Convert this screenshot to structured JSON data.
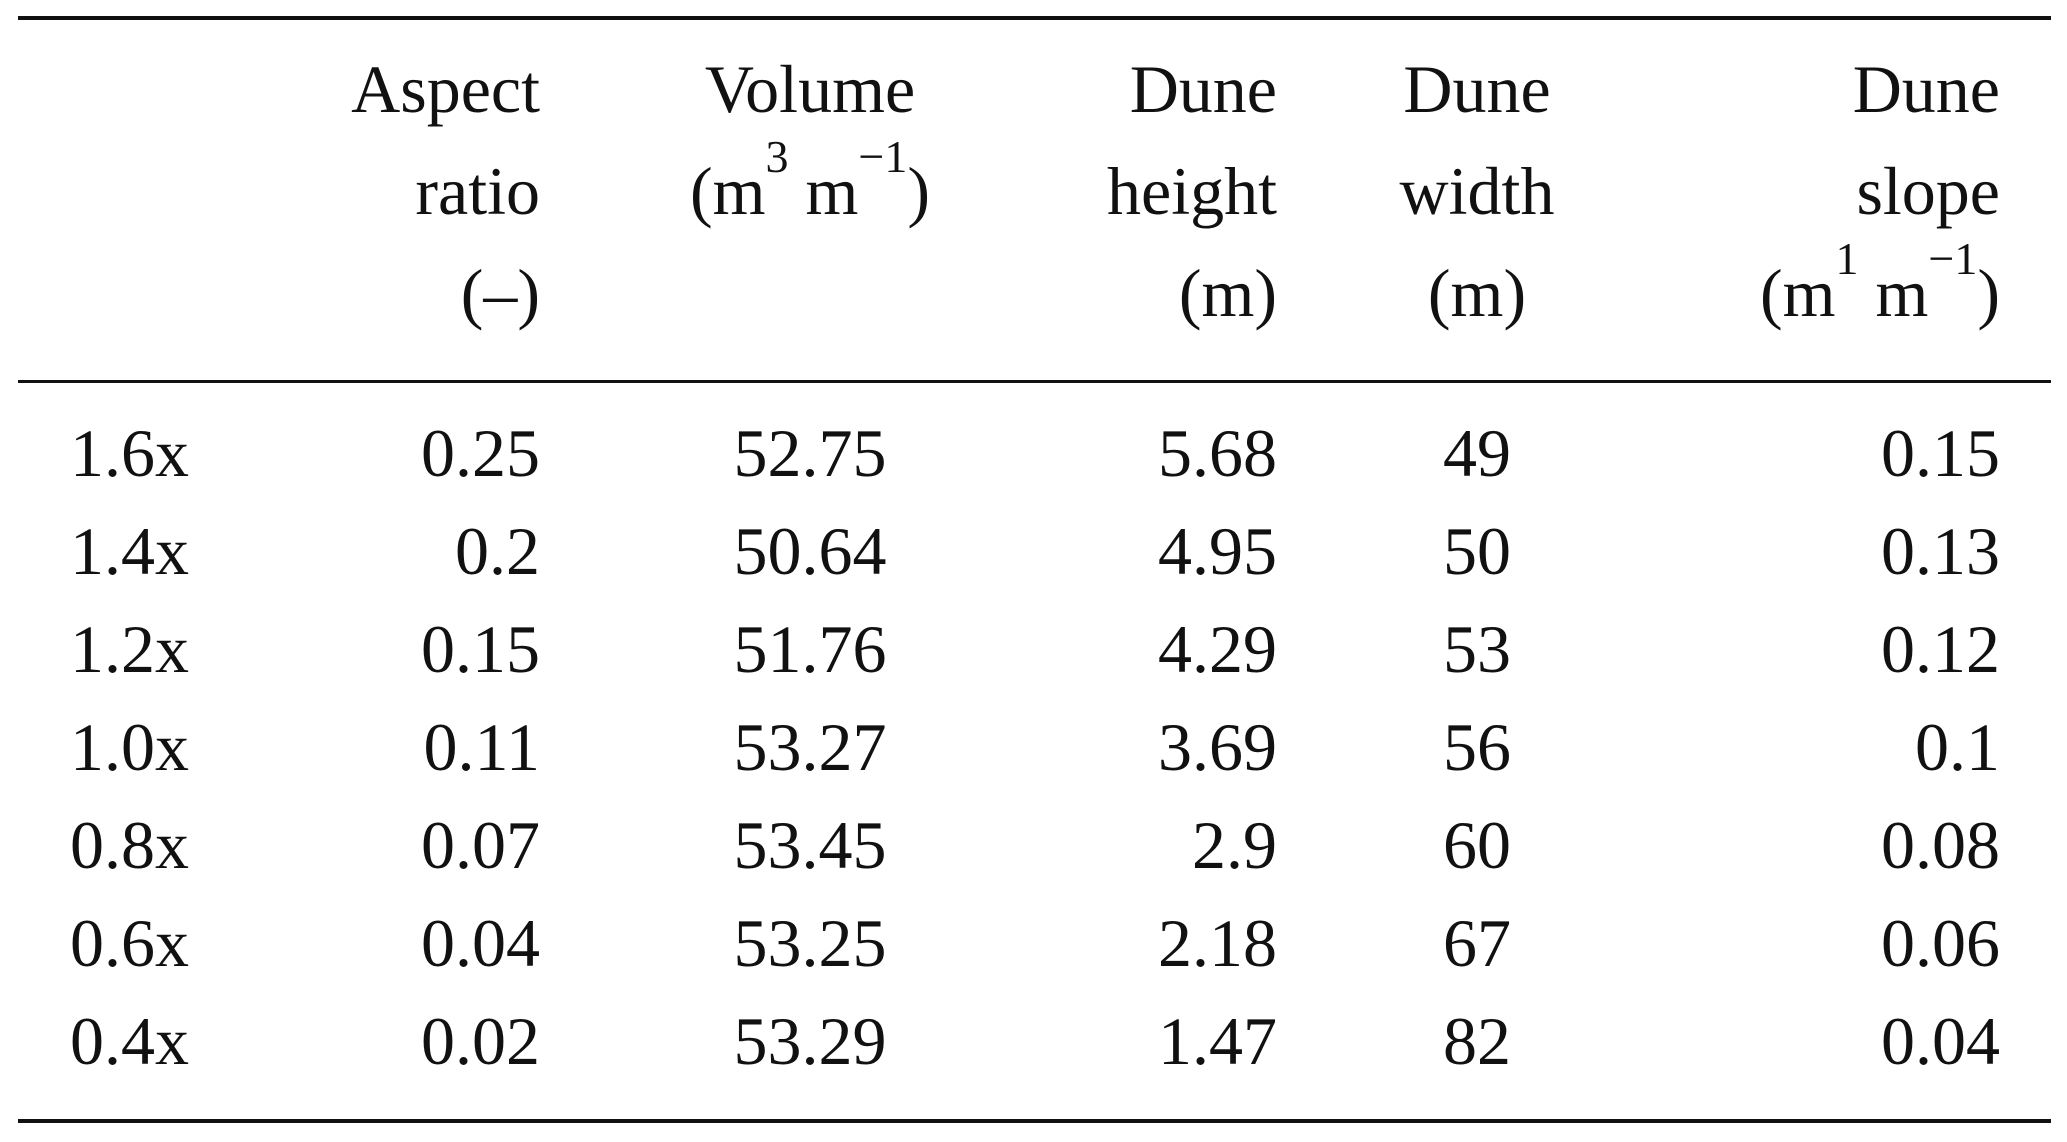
{
  "table": {
    "headers": {
      "aspect": {
        "line1": "Aspect",
        "line2": "ratio",
        "line3": "(–)"
      },
      "volume": {
        "line1": "Volume",
        "unit_pre": "(m",
        "unit_sup1": "3",
        "unit_mid": " m",
        "unit_sup2": "−1",
        "unit_post": ")"
      },
      "height": {
        "line1": "Dune",
        "line2": "height",
        "line3": "(m)"
      },
      "width": {
        "line1": "Dune",
        "line2": "width",
        "line3": "(m)"
      },
      "slope": {
        "line1": "Dune",
        "line2": "slope",
        "unit_pre": "(m",
        "unit_sup1": "1",
        "unit_mid": " m",
        "unit_sup2": "−1",
        "unit_post": ")"
      }
    },
    "rows": [
      {
        "case": "1.6x",
        "aspect": "0.25",
        "volume": "52.75",
        "height": "5.68",
        "width": "49",
        "slope": "0.15"
      },
      {
        "case": "1.4x",
        "aspect": "0.2",
        "volume": "50.64",
        "height": "4.95",
        "width": "50",
        "slope": "0.13"
      },
      {
        "case": "1.2x",
        "aspect": "0.15",
        "volume": "51.76",
        "height": "4.29",
        "width": "53",
        "slope": "0.12"
      },
      {
        "case": "1.0x",
        "aspect": "0.11",
        "volume": "53.27",
        "height": "3.69",
        "width": "56",
        "slope": "0.1"
      },
      {
        "case": "0.8x",
        "aspect": "0.07",
        "volume": "53.45",
        "height": "2.9",
        "width": "60",
        "slope": "0.08"
      },
      {
        "case": "0.6x",
        "aspect": "0.04",
        "volume": "53.25",
        "height": "2.18",
        "width": "67",
        "slope": "0.06"
      },
      {
        "case": "0.4x",
        "aspect": "0.02",
        "volume": "53.29",
        "height": "1.47",
        "width": "82",
        "slope": "0.04"
      }
    ]
  }
}
